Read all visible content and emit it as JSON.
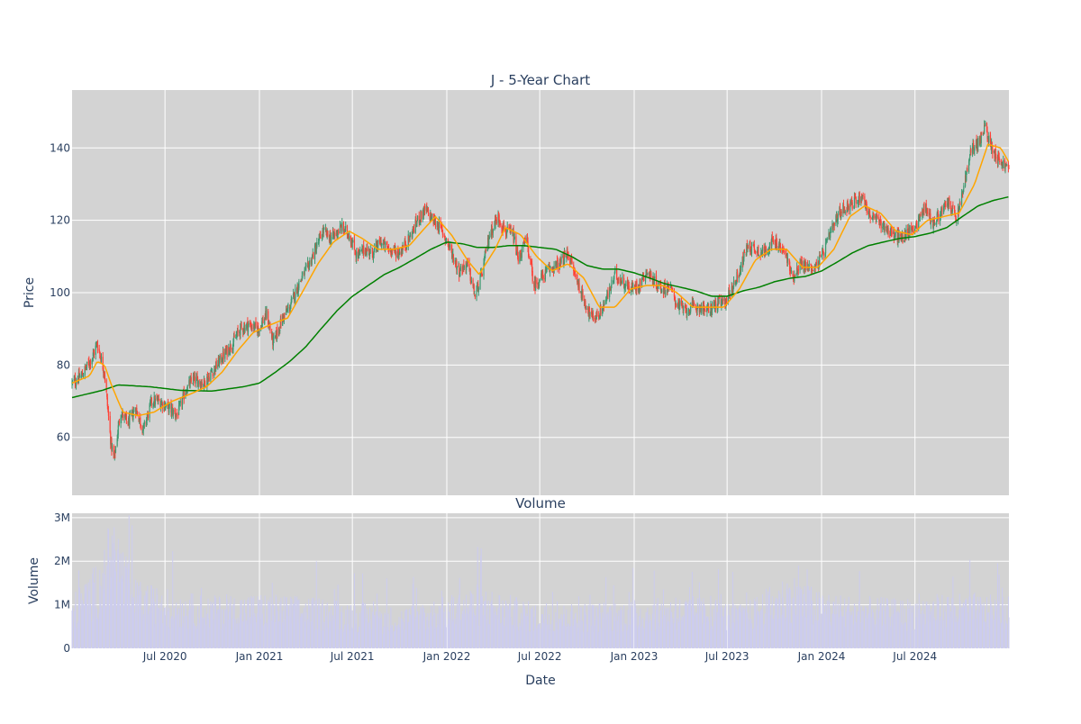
{
  "chart_data": [
    {
      "type": "candlestick",
      "title": "J - 5-Year Chart",
      "ylabel": "Price",
      "ylim": [
        44,
        156
      ],
      "yticks": [
        60,
        80,
        100,
        120,
        140
      ],
      "x_range": [
        "2020-01-02",
        "2024-12-31"
      ],
      "grid": true,
      "background": "#d3d3d3",
      "colors": {
        "up": "#3d9970",
        "down": "#ff4136",
        "ma_short": "#ffa500",
        "ma_long": "#008000"
      },
      "overlays": [
        "moving-average-orange",
        "moving-average-green"
      ],
      "price_anchors": [
        [
          "2020-01-02",
          75
        ],
        [
          "2020-01-20",
          77
        ],
        [
          "2020-02-10",
          82
        ],
        [
          "2020-02-20",
          86
        ],
        [
          "2020-03-05",
          78
        ],
        [
          "2020-03-18",
          58
        ],
        [
          "2020-03-24",
          54
        ],
        [
          "2020-04-05",
          67
        ],
        [
          "2020-04-20",
          64
        ],
        [
          "2020-05-05",
          68
        ],
        [
          "2020-05-20",
          62
        ],
        [
          "2020-06-05",
          70
        ],
        [
          "2020-06-20",
          70
        ],
        [
          "2020-07-10",
          68
        ],
        [
          "2020-07-25",
          66
        ],
        [
          "2020-08-10",
          73
        ],
        [
          "2020-08-25",
          76
        ],
        [
          "2020-09-15",
          75
        ],
        [
          "2020-10-05",
          79
        ],
        [
          "2020-10-25",
          83
        ],
        [
          "2020-11-10",
          86
        ],
        [
          "2020-11-25",
          90
        ],
        [
          "2020-12-10",
          91
        ],
        [
          "2020-12-30",
          90
        ],
        [
          "2021-01-15",
          94
        ],
        [
          "2021-01-28",
          86
        ],
        [
          "2021-02-15",
          93
        ],
        [
          "2021-03-01",
          96
        ],
        [
          "2021-03-20",
          103
        ],
        [
          "2021-04-05",
          107
        ],
        [
          "2021-04-20",
          112
        ],
        [
          "2021-05-05",
          117
        ],
        [
          "2021-05-20",
          115
        ],
        [
          "2021-06-10",
          118
        ],
        [
          "2021-06-25",
          116
        ],
        [
          "2021-07-10",
          110
        ],
        [
          "2021-07-25",
          112
        ],
        [
          "2021-08-10",
          111
        ],
        [
          "2021-08-25",
          114
        ],
        [
          "2021-09-10",
          112
        ],
        [
          "2021-09-30",
          111
        ],
        [
          "2021-10-20",
          115
        ],
        [
          "2021-11-05",
          120
        ],
        [
          "2021-11-20",
          123
        ],
        [
          "2021-12-05",
          120
        ],
        [
          "2021-12-20",
          118
        ],
        [
          "2022-01-05",
          113
        ],
        [
          "2022-01-25",
          106
        ],
        [
          "2022-02-10",
          108
        ],
        [
          "2022-02-25",
          99
        ],
        [
          "2022-03-10",
          105
        ],
        [
          "2022-03-25",
          116
        ],
        [
          "2022-04-10",
          121
        ],
        [
          "2022-04-25",
          117
        ],
        [
          "2022-05-10",
          116
        ],
        [
          "2022-05-20",
          109
        ],
        [
          "2022-06-05",
          115
        ],
        [
          "2022-06-20",
          102
        ],
        [
          "2022-07-10",
          105
        ],
        [
          "2022-07-25",
          107
        ],
        [
          "2022-08-10",
          108
        ],
        [
          "2022-08-25",
          111
        ],
        [
          "2022-09-10",
          104
        ],
        [
          "2022-09-25",
          98
        ],
        [
          "2022-10-10",
          93
        ],
        [
          "2022-10-25",
          94
        ],
        [
          "2022-11-10",
          99
        ],
        [
          "2022-11-25",
          105
        ],
        [
          "2022-12-10",
          103
        ],
        [
          "2022-12-25",
          101
        ],
        [
          "2023-01-10",
          102
        ],
        [
          "2023-01-25",
          106
        ],
        [
          "2023-02-10",
          103
        ],
        [
          "2023-02-25",
          101
        ],
        [
          "2023-03-10",
          102
        ],
        [
          "2023-03-25",
          97
        ],
        [
          "2023-04-10",
          95
        ],
        [
          "2023-04-25",
          96
        ],
        [
          "2023-05-10",
          96
        ],
        [
          "2023-05-25",
          95
        ],
        [
          "2023-06-10",
          97
        ],
        [
          "2023-06-25",
          97
        ],
        [
          "2023-07-10",
          101
        ],
        [
          "2023-07-25",
          106
        ],
        [
          "2023-08-10",
          113
        ],
        [
          "2023-08-25",
          112
        ],
        [
          "2023-09-10",
          111
        ],
        [
          "2023-09-25",
          114
        ],
        [
          "2023-10-10",
          113
        ],
        [
          "2023-10-25",
          110
        ],
        [
          "2023-11-05",
          104
        ],
        [
          "2023-11-20",
          108
        ],
        [
          "2023-12-05",
          107
        ],
        [
          "2023-12-20",
          107
        ],
        [
          "2024-01-05",
          111
        ],
        [
          "2024-01-20",
          117
        ],
        [
          "2024-02-05",
          122
        ],
        [
          "2024-02-20",
          124
        ],
        [
          "2024-03-05",
          125
        ],
        [
          "2024-03-20",
          127
        ],
        [
          "2024-04-05",
          121
        ],
        [
          "2024-04-20",
          120
        ],
        [
          "2024-05-05",
          118
        ],
        [
          "2024-05-20",
          116
        ],
        [
          "2024-06-05",
          115
        ],
        [
          "2024-06-20",
          117
        ],
        [
          "2024-07-05",
          119
        ],
        [
          "2024-07-20",
          124
        ],
        [
          "2024-08-05",
          119
        ],
        [
          "2024-08-20",
          122
        ],
        [
          "2024-09-05",
          125
        ],
        [
          "2024-09-20",
          120
        ],
        [
          "2024-10-05",
          130
        ],
        [
          "2024-10-20",
          140
        ],
        [
          "2024-11-05",
          142
        ],
        [
          "2024-11-15",
          146
        ],
        [
          "2024-11-25",
          141
        ],
        [
          "2024-12-10",
          137
        ],
        [
          "2024-12-31",
          134
        ]
      ],
      "ma_short": [
        [
          "2020-01-02",
          75
        ],
        [
          "2020-02-05",
          77
        ],
        [
          "2020-02-20",
          81
        ],
        [
          "2020-03-05",
          80
        ],
        [
          "2020-03-20",
          74
        ],
        [
          "2020-04-10",
          67
        ],
        [
          "2020-05-10",
          66
        ],
        [
          "2020-06-10",
          67
        ],
        [
          "2020-07-15",
          70
        ],
        [
          "2020-08-20",
          72
        ],
        [
          "2020-09-20",
          74
        ],
        [
          "2020-10-20",
          78
        ],
        [
          "2020-11-20",
          84
        ],
        [
          "2020-12-20",
          89
        ],
        [
          "2021-01-20",
          91
        ],
        [
          "2021-02-25",
          93
        ],
        [
          "2021-03-25",
          100
        ],
        [
          "2021-04-25",
          108
        ],
        [
          "2021-05-25",
          114
        ],
        [
          "2021-06-25",
          117
        ],
        [
          "2021-07-20",
          115
        ],
        [
          "2021-08-20",
          112
        ],
        [
          "2021-09-20",
          112
        ],
        [
          "2021-10-20",
          113
        ],
        [
          "2021-11-20",
          118
        ],
        [
          "2021-12-10",
          121
        ],
        [
          "2022-01-10",
          116
        ],
        [
          "2022-02-10",
          109
        ],
        [
          "2022-03-05",
          105
        ],
        [
          "2022-04-05",
          112
        ],
        [
          "2022-04-25",
          118
        ],
        [
          "2022-05-25",
          116
        ],
        [
          "2022-06-25",
          110
        ],
        [
          "2022-07-25",
          106
        ],
        [
          "2022-08-25",
          108
        ],
        [
          "2022-09-25",
          104
        ],
        [
          "2022-10-25",
          96
        ],
        [
          "2022-11-25",
          96
        ],
        [
          "2022-12-25",
          101
        ],
        [
          "2023-01-25",
          102
        ],
        [
          "2023-02-25",
          102
        ],
        [
          "2023-03-25",
          100
        ],
        [
          "2023-04-25",
          96
        ],
        [
          "2023-05-25",
          96
        ],
        [
          "2023-06-25",
          96
        ],
        [
          "2023-07-25",
          101
        ],
        [
          "2023-08-25",
          109
        ],
        [
          "2023-09-25",
          112
        ],
        [
          "2023-10-25",
          112
        ],
        [
          "2023-11-25",
          107
        ],
        [
          "2023-12-25",
          107
        ],
        [
          "2024-01-25",
          112
        ],
        [
          "2024-02-25",
          121
        ],
        [
          "2024-03-25",
          124
        ],
        [
          "2024-04-25",
          122
        ],
        [
          "2024-05-25",
          117
        ],
        [
          "2024-06-25",
          116
        ],
        [
          "2024-07-25",
          120
        ],
        [
          "2024-08-25",
          121
        ],
        [
          "2024-09-25",
          122
        ],
        [
          "2024-10-25",
          130
        ],
        [
          "2024-11-20",
          141
        ],
        [
          "2024-12-15",
          140
        ],
        [
          "2024-12-31",
          136
        ]
      ],
      "ma_long": [
        [
          "2020-01-02",
          71
        ],
        [
          "2020-03-01",
          73
        ],
        [
          "2020-04-01",
          74.5
        ],
        [
          "2020-06-01",
          74
        ],
        [
          "2020-08-01",
          73
        ],
        [
          "2020-10-01",
          72.8
        ],
        [
          "2020-12-01",
          74
        ],
        [
          "2021-01-01",
          75
        ],
        [
          "2021-02-01",
          78
        ],
        [
          "2021-03-01",
          81
        ],
        [
          "2021-04-01",
          85
        ],
        [
          "2021-05-01",
          90
        ],
        [
          "2021-06-01",
          95
        ],
        [
          "2021-07-01",
          99
        ],
        [
          "2021-08-01",
          102
        ],
        [
          "2021-09-01",
          105
        ],
        [
          "2021-10-01",
          107
        ],
        [
          "2021-11-01",
          109.5
        ],
        [
          "2021-12-01",
          112
        ],
        [
          "2022-01-01",
          114
        ],
        [
          "2022-02-01",
          113.5
        ],
        [
          "2022-03-01",
          112.5
        ],
        [
          "2022-04-01",
          112.5
        ],
        [
          "2022-05-01",
          113
        ],
        [
          "2022-06-01",
          113
        ],
        [
          "2022-07-01",
          112.5
        ],
        [
          "2022-08-01",
          112
        ],
        [
          "2022-09-01",
          110
        ],
        [
          "2022-10-01",
          107.5
        ],
        [
          "2022-11-01",
          106.5
        ],
        [
          "2022-12-01",
          106.5
        ],
        [
          "2023-01-01",
          105.5
        ],
        [
          "2023-02-01",
          104
        ],
        [
          "2023-03-01",
          102.5
        ],
        [
          "2023-04-01",
          101.5
        ],
        [
          "2023-05-01",
          100.5
        ],
        [
          "2023-06-01",
          99
        ],
        [
          "2023-07-01",
          99
        ],
        [
          "2023-08-01",
          100.5
        ],
        [
          "2023-09-01",
          101.5
        ],
        [
          "2023-10-01",
          103
        ],
        [
          "2023-11-01",
          104
        ],
        [
          "2023-12-01",
          104.5
        ],
        [
          "2024-01-01",
          106
        ],
        [
          "2024-02-01",
          108.5
        ],
        [
          "2024-03-01",
          111
        ],
        [
          "2024-04-01",
          113
        ],
        [
          "2024-05-01",
          114
        ],
        [
          "2024-06-01",
          115
        ],
        [
          "2024-07-01",
          115.5
        ],
        [
          "2024-08-01",
          116.5
        ],
        [
          "2024-09-01",
          118
        ],
        [
          "2024-10-01",
          121
        ],
        [
          "2024-11-01",
          124
        ],
        [
          "2024-12-01",
          125.5
        ],
        [
          "2024-12-31",
          126.5
        ]
      ]
    },
    {
      "type": "bar",
      "title": "Volume",
      "xlabel": "Date",
      "ylabel": "Volume",
      "ylim": [
        0,
        3100000
      ],
      "yticks": [
        0,
        1000000,
        2000000,
        3000000
      ],
      "ytick_labels": [
        "0",
        "1M",
        "2M",
        "3M"
      ],
      "xticks": [
        "2020-07-01",
        "2021-01-01",
        "2021-07-01",
        "2022-01-01",
        "2022-07-01",
        "2023-01-01",
        "2023-07-01",
        "2024-01-01",
        "2024-07-01"
      ],
      "xtick_labels": [
        "Jul 2020",
        "Jan 2021",
        "Jul 2021",
        "Jan 2022",
        "Jul 2022",
        "Jan 2023",
        "Jul 2023",
        "Jan 2024",
        "Jul 2024"
      ],
      "grid": true,
      "background": "#d3d3d3",
      "bar_color": "#ccccee",
      "volume_anchors": [
        [
          "2020-01-02",
          900000
        ],
        [
          "2020-03-01",
          1600000
        ],
        [
          "2020-03-20",
          2400000
        ],
        [
          "2020-05-01",
          1200000
        ],
        [
          "2020-07-01",
          1000000
        ],
        [
          "2020-10-01",
          900000
        ],
        [
          "2021-01-01",
          950000
        ],
        [
          "2021-06-01",
          850000
        ],
        [
          "2021-10-01",
          700000
        ],
        [
          "2022-01-01",
          900000
        ],
        [
          "2022-03-01",
          1100000
        ],
        [
          "2022-07-01",
          750000
        ],
        [
          "2022-11-01",
          800000
        ],
        [
          "2023-02-01",
          850000
        ],
        [
          "2023-05-01",
          900000
        ],
        [
          "2023-08-01",
          750000
        ],
        [
          "2023-11-01",
          1300000
        ],
        [
          "2024-01-01",
          950000
        ],
        [
          "2024-06-01",
          850000
        ],
        [
          "2024-09-01",
          950000
        ],
        [
          "2024-12-31",
          900000
        ]
      ]
    }
  ]
}
